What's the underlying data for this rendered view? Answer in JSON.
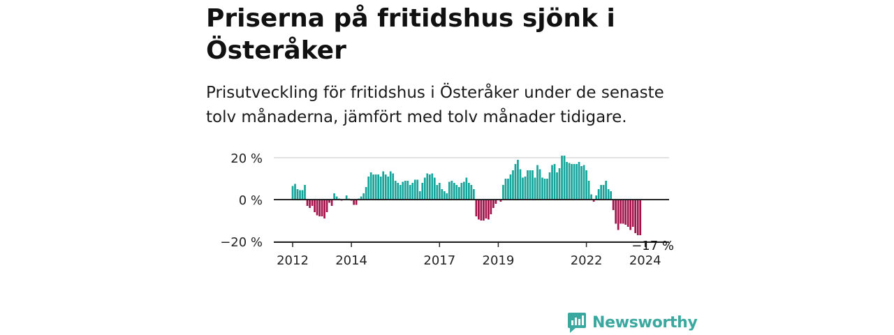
{
  "title": "Priserna på fritidshus sjönk i Österåker",
  "subtitle": "Prisutveckling för fritidshus i Österåker under de senaste tolv månaderna, jämfört med tolv månader tidigare.",
  "brand": {
    "name": "Newsworthy",
    "icon": "newsworthy-logo-icon"
  },
  "colors": {
    "positive": "#17a59b",
    "negative": "#a3124a",
    "axis": "#222222",
    "grid": "#d9d9d9"
  },
  "chart_data": {
    "type": "bar",
    "title": "Priserna på fritidshus sjönk i Österåker",
    "ylabel": "",
    "ylim": [
      -20,
      20
    ],
    "yticks": [
      {
        "value": 20,
        "label": "20 %"
      },
      {
        "value": 0,
        "label": "0 %"
      },
      {
        "value": -20,
        "label": "−20 %"
      }
    ],
    "xticks": [
      {
        "month_index": 0,
        "label": "2012"
      },
      {
        "month_index": 24,
        "label": "2014"
      },
      {
        "month_index": 60,
        "label": "2017"
      },
      {
        "month_index": 84,
        "label": "2019"
      },
      {
        "month_index": 120,
        "label": "2022"
      },
      {
        "month_index": 144,
        "label": "2024"
      }
    ],
    "start_label": "2012-01",
    "values": [
      6.5,
      7.5,
      5,
      4.5,
      4.5,
      7,
      -3,
      -4,
      -3,
      -6,
      -7.5,
      -8,
      -8,
      -9,
      -6,
      -1.5,
      -3,
      3,
      1.5,
      0.5,
      -0.5,
      0,
      2,
      0.5,
      -0.5,
      -2.5,
      -2.5,
      0.5,
      1.5,
      3,
      6,
      11,
      13,
      12,
      12,
      12,
      11,
      13.5,
      12,
      11,
      13.5,
      12.5,
      9,
      8,
      7,
      8.5,
      9,
      9,
      7,
      8,
      9.5,
      9.5,
      4,
      8,
      10.5,
      12.5,
      12,
      12.5,
      10.5,
      7,
      8,
      5,
      4,
      3,
      8.5,
      9,
      8,
      7,
      6,
      8,
      8.5,
      10.5,
      8,
      7,
      5,
      -8,
      -9.5,
      -10,
      -10,
      -9,
      -9.5,
      -7,
      -4,
      -2,
      0,
      -1,
      7,
      10,
      10,
      12,
      14,
      17,
      19,
      14.5,
      10.5,
      11,
      14,
      14,
      14,
      10.5,
      16.5,
      14.5,
      10.5,
      10,
      10,
      13,
      16.5,
      17,
      13,
      15,
      21,
      21,
      18,
      17.5,
      17,
      17,
      17,
      18,
      16,
      16.5,
      14,
      9,
      2.5,
      -1,
      2,
      5,
      7,
      7,
      9,
      5,
      4,
      -5,
      -11.5,
      -14.5,
      -11.5,
      -11.5,
      -12,
      -13,
      -14.5,
      -13,
      -16,
      -17,
      -17
    ],
    "annotations": [
      {
        "month_index": 145,
        "label": "−17 %"
      }
    ]
  }
}
